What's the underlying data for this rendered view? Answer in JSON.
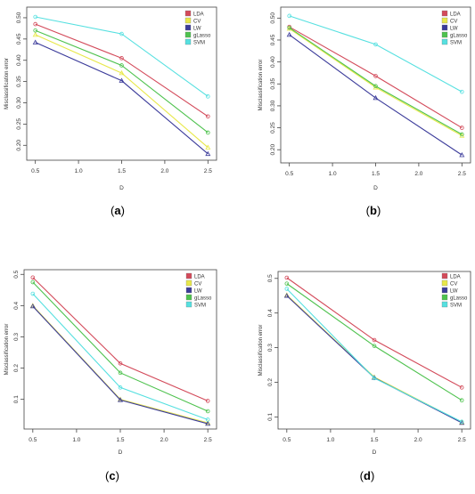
{
  "figure": {
    "legend_colors": {
      "LDA": "#d34a5a",
      "CV": "#e8e84a",
      "LW": "#3b3b9a",
      "gLasso": "#4ec24e",
      "SVM": "#56e0e0"
    }
  },
  "chart_data": [
    {
      "type": "line",
      "panel_label": "(a)",
      "x": [
        0.5,
        1.5,
        2.5
      ],
      "xticks": [
        "0.5",
        "1.0",
        "1.5",
        "2.0",
        "2.5"
      ],
      "yticks": [
        "0.20",
        "0.25",
        "0.30",
        "0.35",
        "0.40",
        "0.45",
        "0.50"
      ],
      "xlim": [
        0.4,
        2.6
      ],
      "ylim": [
        0.165,
        0.525
      ],
      "xlabel": "D",
      "ylabel": "Misclassification error",
      "legend": "top-right",
      "grid": false,
      "series": [
        {
          "name": "LDA",
          "color": "#d34a5a",
          "marker": "circle",
          "values": [
            0.485,
            0.405,
            0.268
          ]
        },
        {
          "name": "CV",
          "color": "#e8e84a",
          "marker": "triangle",
          "values": [
            0.46,
            0.37,
            0.195
          ]
        },
        {
          "name": "LW",
          "color": "#3b3b9a",
          "marker": "triangle",
          "values": [
            0.442,
            0.352,
            0.18
          ]
        },
        {
          "name": "gLasso",
          "color": "#4ec24e",
          "marker": "circle",
          "values": [
            0.47,
            0.388,
            0.23
          ]
        },
        {
          "name": "SVM",
          "color": "#56e0e0",
          "marker": "circle",
          "values": [
            0.502,
            0.462,
            0.315
          ]
        }
      ]
    },
    {
      "type": "line",
      "panel_label": "(b)",
      "x": [
        0.5,
        1.5,
        2.5
      ],
      "xticks": [
        "0.5",
        "1.0",
        "1.5",
        "2.0",
        "2.5"
      ],
      "yticks": [
        "0.20",
        "0.25",
        "0.30",
        "0.35",
        "0.40",
        "0.45",
        "0.50"
      ],
      "xlim": [
        0.4,
        2.6
      ],
      "ylim": [
        0.17,
        0.525
      ],
      "xlabel": "D",
      "ylabel": "Misclassification error",
      "legend": "top-right",
      "grid": false,
      "series": [
        {
          "name": "LDA",
          "color": "#d34a5a",
          "marker": "circle",
          "values": [
            0.48,
            0.368,
            0.25
          ]
        },
        {
          "name": "CV",
          "color": "#e8e84a",
          "marker": "triangle",
          "values": [
            0.476,
            0.342,
            0.232
          ]
        },
        {
          "name": "LW",
          "color": "#3b3b9a",
          "marker": "triangle",
          "values": [
            0.462,
            0.318,
            0.188
          ]
        },
        {
          "name": "gLasso",
          "color": "#4ec24e",
          "marker": "circle",
          "values": [
            0.478,
            0.345,
            0.235
          ]
        },
        {
          "name": "SVM",
          "color": "#56e0e0",
          "marker": "circle",
          "values": [
            0.505,
            0.44,
            0.332
          ]
        }
      ]
    },
    {
      "type": "line",
      "panel_label": "(c)",
      "x": [
        0.5,
        1.5,
        2.5
      ],
      "xticks": [
        "0.5",
        "1.0",
        "1.5",
        "2.0",
        "2.5"
      ],
      "yticks": [
        "0.1",
        "0.2",
        "0.3",
        "0.4",
        "0.5"
      ],
      "xlim": [
        0.4,
        2.6
      ],
      "ylim": [
        0.005,
        0.515
      ],
      "xlabel": "D",
      "ylabel": "Misclassification error",
      "legend": "top-right",
      "grid": false,
      "series": [
        {
          "name": "LDA",
          "color": "#d34a5a",
          "marker": "circle",
          "values": [
            0.49,
            0.215,
            0.095
          ]
        },
        {
          "name": "CV",
          "color": "#e8e84a",
          "marker": "triangle",
          "values": [
            0.4,
            0.1,
            0.025
          ]
        },
        {
          "name": "LW",
          "color": "#3b3b9a",
          "marker": "triangle",
          "values": [
            0.398,
            0.098,
            0.022
          ]
        },
        {
          "name": "gLasso",
          "color": "#4ec24e",
          "marker": "circle",
          "values": [
            0.475,
            0.185,
            0.062
          ]
        },
        {
          "name": "SVM",
          "color": "#56e0e0",
          "marker": "circle",
          "values": [
            0.438,
            0.138,
            0.035
          ]
        }
      ]
    },
    {
      "type": "line",
      "panel_label": "(d)",
      "x": [
        0.5,
        1.5,
        2.5
      ],
      "xticks": [
        "0.5",
        "1.0",
        "1.5",
        "2.0",
        "2.5"
      ],
      "yticks": [
        "0.1",
        "0.2",
        "0.3",
        "0.4",
        "0.5"
      ],
      "xlim": [
        0.4,
        2.6
      ],
      "ylim": [
        0.065,
        0.52
      ],
      "xlabel": "D",
      "ylabel": "Misclassification error",
      "legend": "top-right",
      "grid": false,
      "series": [
        {
          "name": "LDA",
          "color": "#d34a5a",
          "marker": "circle",
          "values": [
            0.502,
            0.322,
            0.185
          ]
        },
        {
          "name": "CV",
          "color": "#e8e84a",
          "marker": "triangle",
          "values": [
            0.452,
            0.215,
            0.085
          ]
        },
        {
          "name": "LW",
          "color": "#3b3b9a",
          "marker": "triangle",
          "values": [
            0.45,
            0.213,
            0.083
          ]
        },
        {
          "name": "gLasso",
          "color": "#4ec24e",
          "marker": "circle",
          "values": [
            0.485,
            0.305,
            0.148
          ]
        },
        {
          "name": "SVM",
          "color": "#56e0e0",
          "marker": "circle",
          "values": [
            0.47,
            0.212,
            0.086
          ]
        }
      ]
    }
  ]
}
